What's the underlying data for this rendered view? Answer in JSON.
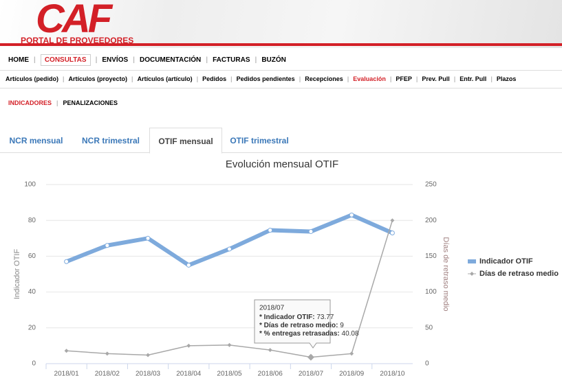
{
  "header": {
    "logo": "CAF",
    "portal": "PORTAL DE PROVEEDORES"
  },
  "main_nav": [
    "HOME",
    "CONSULTAS",
    "ENVÍOS",
    "DOCUMENTACIÓN",
    "FACTURAS",
    "BUZÓN"
  ],
  "sub_nav": [
    "Artículos (pedido)",
    "Artículos (proyecto)",
    "Artículos (artículo)",
    "Pedidos",
    "Pedidos pendientes",
    "Recepciones",
    "Evaluación",
    "PFEP",
    "Prev. Pull",
    "Entr. Pull",
    "Plazos"
  ],
  "section_nav": [
    "INDICADORES",
    "PENALIZACIONES"
  ],
  "tabs": [
    "NCR mensual",
    "NCR trimestral",
    "OTIF mensual",
    "OTIF trimestral"
  ],
  "chart_data": {
    "type": "line",
    "title": "Evolución mensual OTIF",
    "categories": [
      "2018/01",
      "2018/02",
      "2018/03",
      "2018/04",
      "2018/05",
      "2018/06",
      "2018/07",
      "2018/09",
      "2018/10"
    ],
    "series": [
      {
        "name": "Indicador OTIF",
        "color": "#7eaadc",
        "values": [
          57,
          66,
          70,
          55,
          64,
          74.5,
          73.77,
          83,
          73
        ]
      },
      {
        "name": "Días de retraso medio",
        "color": "#a8a8a8",
        "axis": "y2",
        "values": [
          18,
          14,
          12,
          25,
          26,
          19,
          9,
          14,
          200
        ]
      }
    ],
    "ylabel": "Indicador OTIF",
    "y2label": "Días de retraso medio",
    "ylim": [
      0,
      100
    ],
    "yticks": [
      0,
      20,
      40,
      60,
      80,
      100
    ],
    "y2lim": [
      0,
      250
    ],
    "y2ticks": [
      0,
      50,
      100,
      150,
      200,
      250
    ],
    "grid": true,
    "tooltip": {
      "title": "2018/07",
      "lines": [
        "* Indicador OTIF: ",
        "* Días de retraso medio: ",
        "* % entregas retrasadas: "
      ],
      "extra_value": "40.08"
    }
  }
}
